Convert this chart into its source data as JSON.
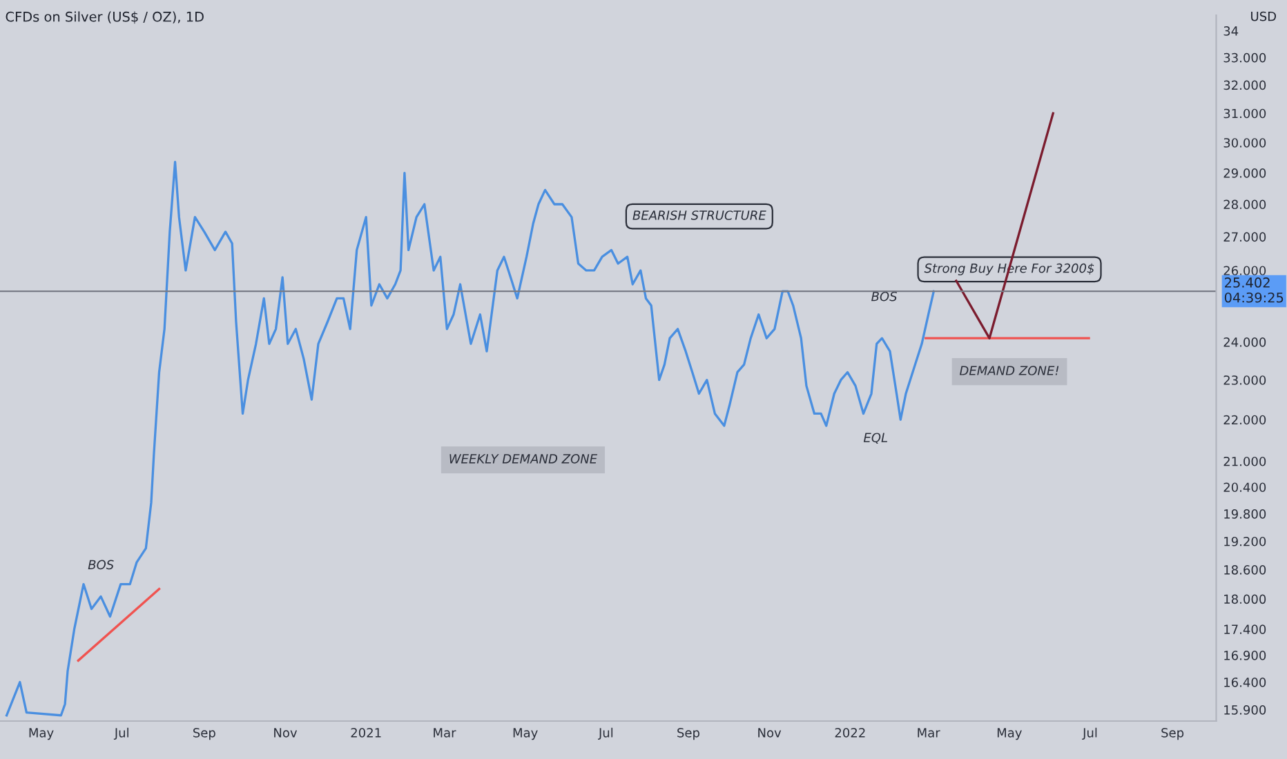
{
  "chart_data": {
    "type": "line",
    "title": "CFDs on Silver (US$ / OZ), 1D",
    "ylabel": "USD",
    "log": true,
    "grid": false,
    "marker": "none",
    "line_style": "solid",
    "xlim": [
      "2020-03-31",
      "2022-10-04"
    ],
    "ylim": [
      15.7,
      34.6
    ],
    "xticks": [
      {
        "value": "2020-05-01",
        "label": "May"
      },
      {
        "value": "2020-07-01",
        "label": "Jul"
      },
      {
        "value": "2020-09-01",
        "label": "Sep"
      },
      {
        "value": "2020-11-01",
        "label": "Nov"
      },
      {
        "value": "2021-01-01",
        "label": "2021"
      },
      {
        "value": "2021-03-01",
        "label": "Mar"
      },
      {
        "value": "2021-05-01",
        "label": "May"
      },
      {
        "value": "2021-07-01",
        "label": "Jul"
      },
      {
        "value": "2021-09-01",
        "label": "Sep"
      },
      {
        "value": "2021-11-01",
        "label": "Nov"
      },
      {
        "value": "2022-01-01",
        "label": "2022"
      },
      {
        "value": "2022-03-01",
        "label": "Mar"
      },
      {
        "value": "2022-05-01",
        "label": "May"
      },
      {
        "value": "2022-07-01",
        "label": "Jul"
      },
      {
        "value": "2022-09-01",
        "label": "Sep"
      }
    ],
    "yticks": [
      {
        "value": 15.9,
        "label": "15.900"
      },
      {
        "value": 16.4,
        "label": "16.400"
      },
      {
        "value": 16.9,
        "label": "16.900"
      },
      {
        "value": 17.4,
        "label": "17.400"
      },
      {
        "value": 18,
        "label": "18.000"
      },
      {
        "value": 18.6,
        "label": "18.600"
      },
      {
        "value": 19.2,
        "label": "19.200"
      },
      {
        "value": 19.8,
        "label": "19.800"
      },
      {
        "value": 20.4,
        "label": "20.400"
      },
      {
        "value": 21,
        "label": "21.000"
      },
      {
        "value": 22,
        "label": "22.000"
      },
      {
        "value": 23,
        "label": "23.000"
      },
      {
        "value": 24,
        "label": "24.000"
      },
      {
        "value": 26,
        "label": "26.000"
      },
      {
        "value": 27,
        "label": "27.000"
      },
      {
        "value": 28,
        "label": "28.000"
      },
      {
        "value": 29,
        "label": "29.000"
      },
      {
        "value": 30,
        "label": "30.000"
      },
      {
        "value": 31,
        "label": "31.000"
      },
      {
        "value": 32,
        "label": "32.000"
      },
      {
        "value": 33,
        "label": "33.000"
      },
      {
        "value": 34,
        "label": "34"
      }
    ],
    "series": [
      {
        "color": "#4a8fe0",
        "x": [
          "2020-04-05",
          "2020-04-15",
          "2020-04-20",
          "2020-05-16",
          "2020-05-19",
          "2020-05-21",
          "2020-05-26",
          "2020-06-02",
          "2020-06-08",
          "2020-06-15",
          "2020-06-22",
          "2020-06-30",
          "2020-07-07",
          "2020-07-12",
          "2020-07-19",
          "2020-07-23",
          "2020-07-25",
          "2020-07-29",
          "2020-08-02",
          "2020-08-06",
          "2020-08-10",
          "2020-08-13",
          "2020-08-18",
          "2020-08-25",
          "2020-09-01",
          "2020-09-09",
          "2020-09-17",
          "2020-09-22",
          "2020-09-25",
          "2020-09-30",
          "2020-10-04",
          "2020-10-10",
          "2020-10-16",
          "2020-10-20",
          "2020-10-25",
          "2020-10-30",
          "2020-11-03",
          "2020-11-09",
          "2020-11-15",
          "2020-11-21",
          "2020-11-26",
          "2020-12-03",
          "2020-12-10",
          "2020-12-15",
          "2020-12-20",
          "2020-12-25",
          "2021-01-01",
          "2021-01-05",
          "2021-01-11",
          "2021-01-17",
          "2021-01-23",
          "2021-01-27",
          "2021-01-30",
          "2021-02-02",
          "2021-02-08",
          "2021-02-14",
          "2021-02-21",
          "2021-02-26",
          "2021-03-03",
          "2021-03-08",
          "2021-03-13",
          "2021-03-21",
          "2021-03-28",
          "2021-04-02",
          "2021-04-10",
          "2021-04-15",
          "2021-04-20",
          "2021-04-25",
          "2021-05-02",
          "2021-05-07",
          "2021-05-11",
          "2021-05-16",
          "2021-05-23",
          "2021-05-29",
          "2021-06-05",
          "2021-06-10",
          "2021-06-16",
          "2021-06-22",
          "2021-06-28",
          "2021-07-05",
          "2021-07-10",
          "2021-07-17",
          "2021-07-21",
          "2021-07-27",
          "2021-07-31",
          "2021-08-04",
          "2021-08-10",
          "2021-08-14",
          "2021-08-18",
          "2021-08-24",
          "2021-08-30",
          "2021-09-04",
          "2021-09-09",
          "2021-09-15",
          "2021-09-21",
          "2021-09-28",
          "2021-10-02",
          "2021-10-08",
          "2021-10-13",
          "2021-10-18",
          "2021-10-24",
          "2021-10-30",
          "2021-11-05",
          "2021-11-11",
          "2021-11-15",
          "2021-11-19",
          "2021-11-25",
          "2021-11-29",
          "2021-12-05",
          "2021-12-10",
          "2021-12-14",
          "2021-12-20",
          "2021-12-25",
          "2021-12-30",
          "2022-01-05",
          "2022-01-11",
          "2022-01-17",
          "2022-01-21",
          "2022-01-25",
          "2022-01-31",
          "2022-02-05",
          "2022-02-08",
          "2022-02-12",
          "2022-02-19",
          "2022-02-24",
          "2022-03-01",
          "2022-03-05"
        ],
        "values": [
          15.8,
          16.4,
          15.85,
          15.8,
          16.0,
          16.6,
          17.4,
          18.3,
          17.8,
          18.05,
          17.65,
          18.3,
          18.3,
          18.75,
          19.05,
          20.05,
          21.15,
          23.2,
          24.35,
          27.15,
          29.36,
          27.6,
          26.0,
          27.6,
          27.15,
          26.6,
          27.15,
          26.8,
          24.55,
          22.15,
          23.0,
          23.95,
          25.2,
          23.95,
          24.35,
          25.8,
          23.95,
          24.35,
          23.55,
          22.5,
          23.95,
          24.55,
          25.2,
          25.2,
          24.35,
          26.6,
          27.6,
          25.0,
          25.6,
          25.2,
          25.6,
          26.0,
          29.0,
          26.6,
          27.6,
          28.0,
          26.0,
          26.4,
          24.35,
          24.75,
          25.6,
          23.95,
          24.75,
          23.75,
          26.0,
          26.4,
          25.8,
          25.2,
          26.4,
          27.4,
          28.0,
          28.45,
          28.0,
          28.0,
          27.6,
          26.2,
          26.0,
          26.0,
          26.4,
          26.6,
          26.2,
          26.4,
          25.6,
          26.0,
          25.2,
          25.0,
          23.0,
          23.4,
          24.1,
          24.35,
          23.75,
          23.2,
          22.65,
          23.0,
          22.15,
          21.85,
          22.35,
          23.2,
          23.4,
          24.1,
          24.75,
          24.1,
          24.35,
          25.4,
          25.4,
          25.0,
          24.1,
          22.85,
          22.15,
          22.15,
          21.85,
          22.65,
          23.0,
          23.2,
          22.85,
          22.15,
          22.65,
          23.95,
          24.1,
          23.75,
          22.65,
          22.0,
          22.65,
          23.4,
          23.95,
          24.75,
          25.4
        ]
      },
      {
        "color": "#f05350",
        "x": [
          "2020-05-29",
          "2020-07-29"
        ],
        "values": [
          16.8,
          18.2
        ]
      },
      {
        "color": "#f05350",
        "x": [
          "2022-02-27",
          "2022-06-30"
        ],
        "values": [
          24.1,
          24.1
        ]
      },
      {
        "color": "#7b1c2e",
        "x": [
          "2022-03-22",
          "2022-04-16",
          "2022-06-03"
        ],
        "values": [
          25.7,
          24.1,
          31.0
        ]
      }
    ],
    "ref_lines": [
      {
        "axis": "y",
        "value": 25.402,
        "label": "25.402\n04:39:25",
        "color": "#787b86"
      }
    ],
    "annotations": [
      "BOS",
      "BEARISH STRUCTURE",
      "BOS",
      "EQL",
      "WEEKLY DEMAND ZONE",
      "DEMAND ZONE!",
      "Strong Buy Here For 3200$"
    ]
  }
}
